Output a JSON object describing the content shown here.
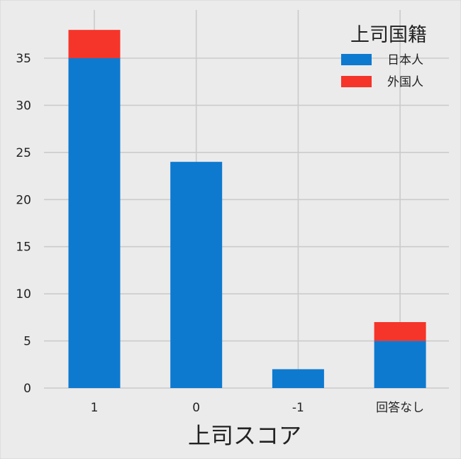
{
  "chart_data": {
    "type": "bar",
    "stacked": true,
    "categories": [
      "1",
      "0",
      "-1",
      "回答なし"
    ],
    "series": [
      {
        "name": "日本人",
        "values": [
          35,
          24,
          2,
          5
        ],
        "color": "#0d7ad0"
      },
      {
        "name": "外国人",
        "values": [
          3,
          0,
          0,
          2
        ],
        "color": "#f5352a"
      }
    ],
    "xlabel": "上司スコア",
    "ylabel": "",
    "ylim": [
      0,
      40
    ],
    "yticks": [
      0,
      5,
      10,
      15,
      20,
      25,
      30,
      35
    ],
    "grid": true,
    "legend": {
      "title": "上司国籍",
      "placement": "top-right"
    },
    "background_color": "#ebebeb",
    "grid_color": "#cbcbcb",
    "text_color": "#222222"
  }
}
